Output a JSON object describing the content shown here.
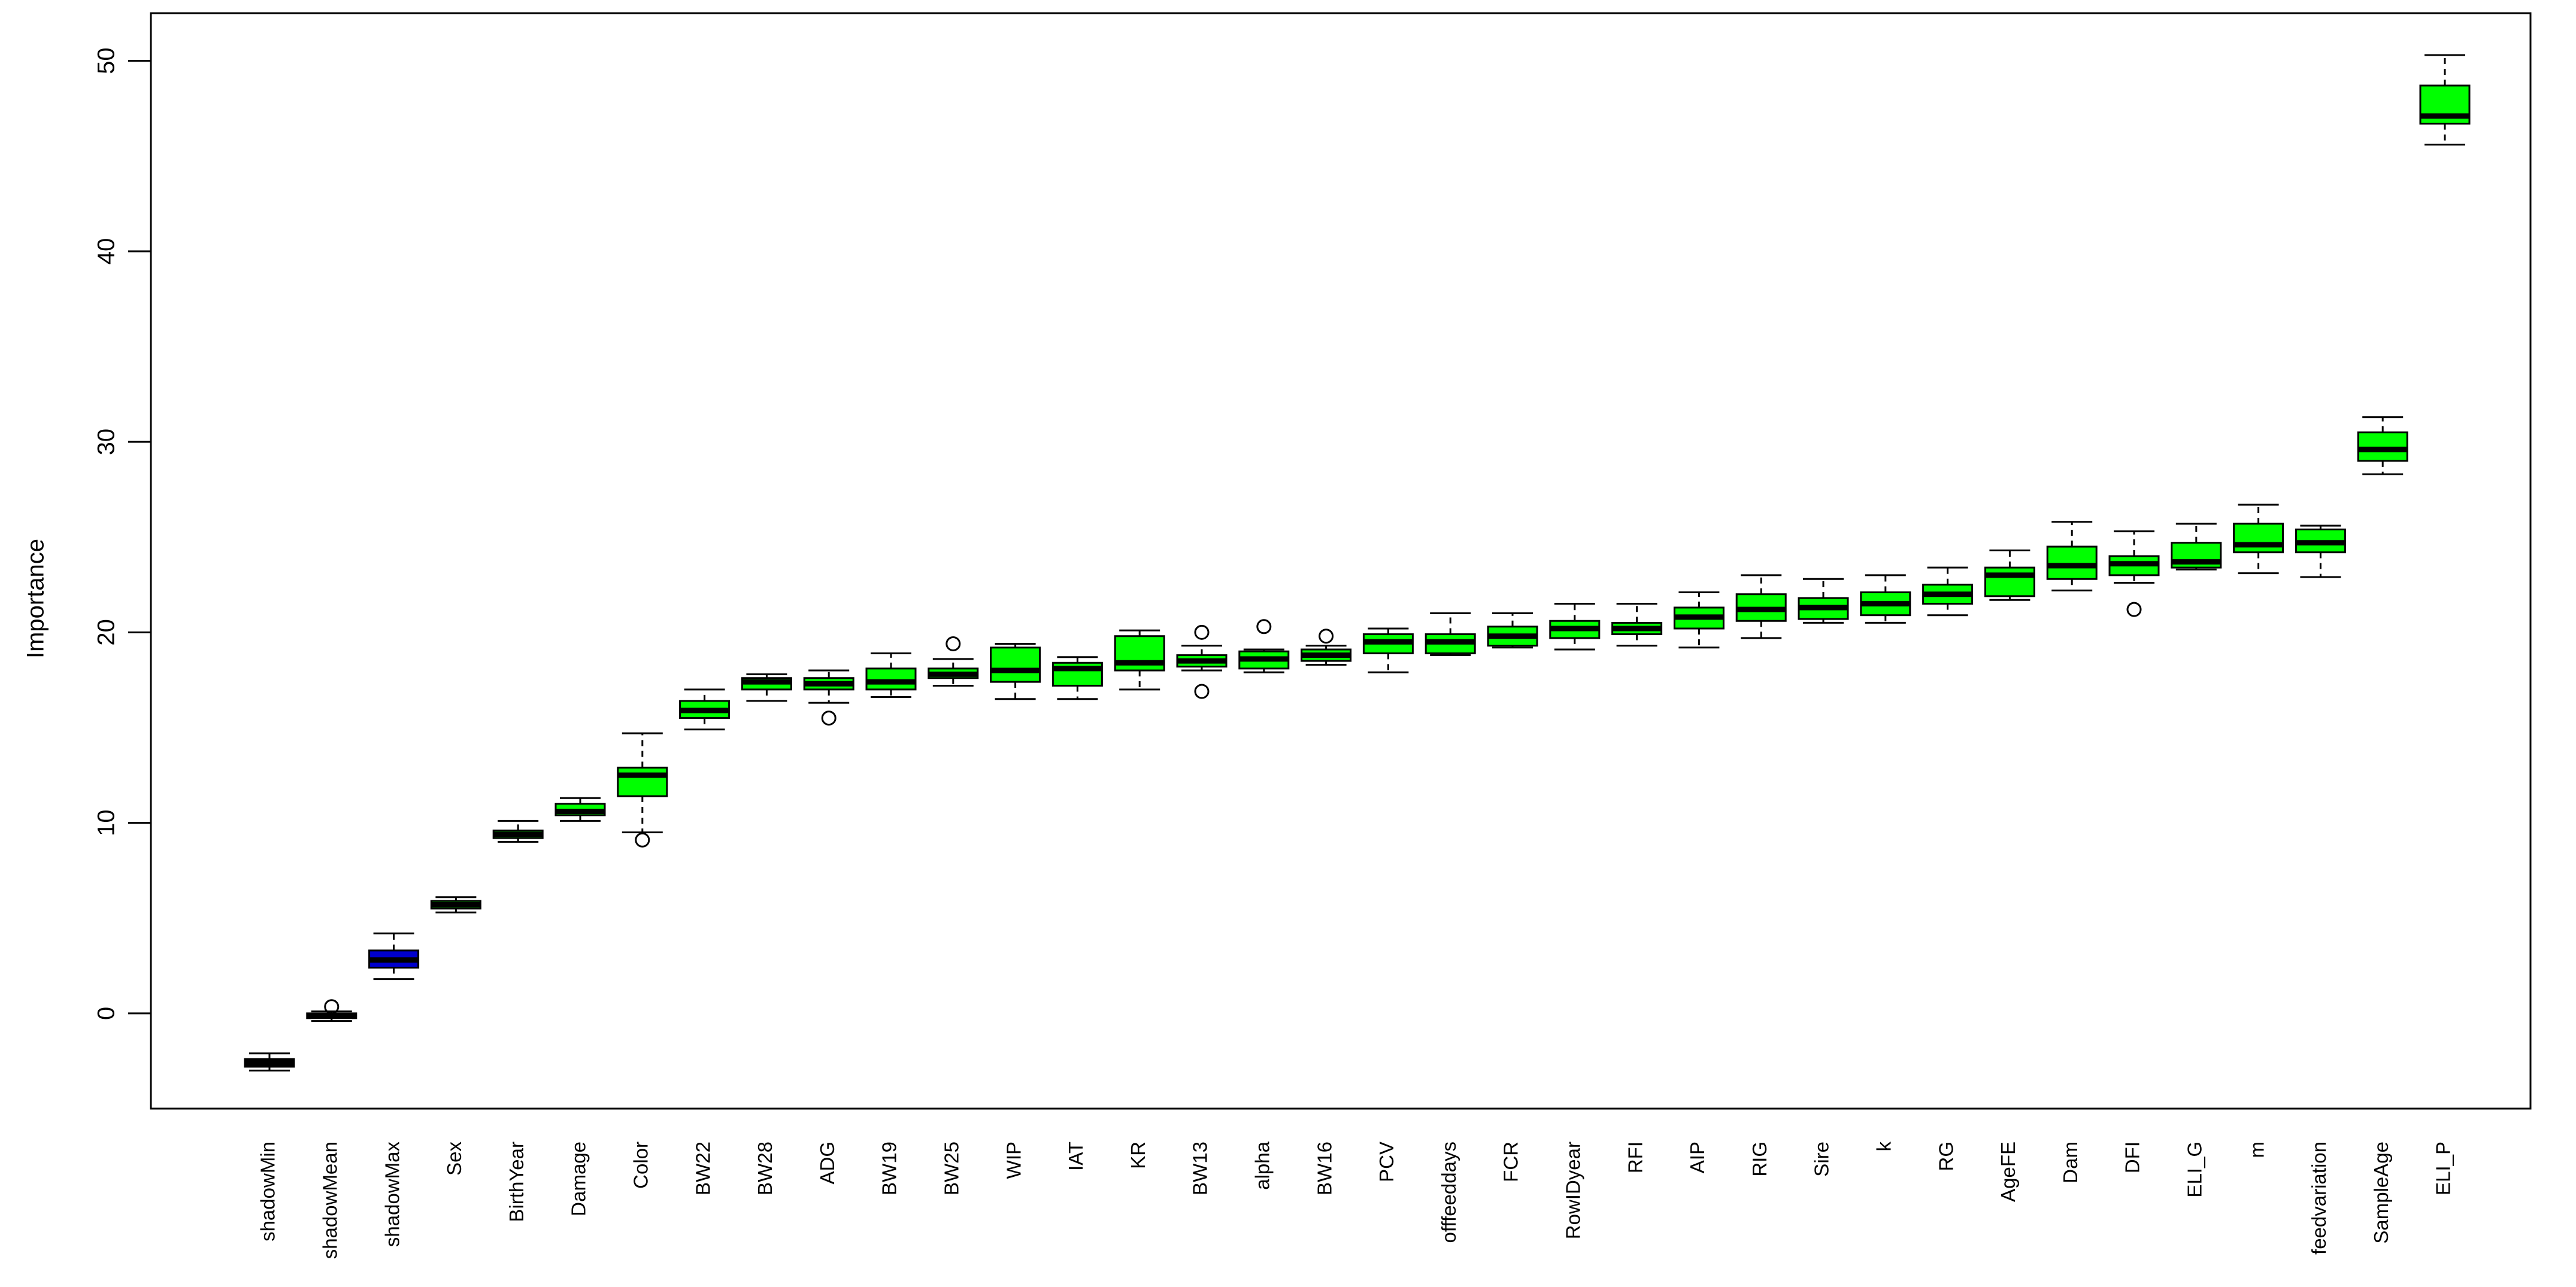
{
  "chart_data": {
    "type": "box",
    "ylabel": "Importance",
    "categories": [
      "shadowMin",
      "shadowMean",
      "shadowMax",
      "Sex",
      "BirthYear",
      "Damage",
      "Color",
      "BW22",
      "BW28",
      "ADG",
      "BW19",
      "BW25",
      "WIP",
      "IAT",
      "KR",
      "BW13",
      "alpha",
      "BW16",
      "PCV",
      "offfeeddays",
      "FCR",
      "RowIDyear",
      "RFI",
      "AIP",
      "RIG",
      "Sire",
      "k",
      "RG",
      "AgeFE",
      "Dam",
      "DFI",
      "ELI_G",
      "m",
      "feedvariation",
      "SampleAge",
      "ELI_P"
    ],
    "min": [
      -3.0,
      -0.4,
      1.8,
      5.3,
      9.0,
      10.1,
      9.5,
      14.9,
      16.4,
      16.3,
      16.6,
      17.2,
      16.5,
      16.5,
      17.0,
      18.0,
      17.9,
      18.3,
      17.9,
      18.8,
      19.2,
      19.1,
      19.3,
      19.2,
      19.7,
      20.5,
      20.5,
      20.9,
      21.7,
      22.2,
      22.6,
      23.3,
      23.1,
      22.9,
      28.3,
      45.6
    ],
    "q1": [
      -2.8,
      -0.25,
      2.4,
      5.5,
      9.2,
      10.4,
      11.4,
      15.5,
      17.0,
      17.0,
      17.0,
      17.6,
      17.4,
      17.2,
      18.0,
      18.2,
      18.1,
      18.5,
      18.9,
      18.9,
      19.3,
      19.7,
      19.9,
      20.2,
      20.6,
      20.7,
      20.9,
      21.5,
      21.9,
      22.8,
      23.0,
      23.4,
      24.2,
      24.2,
      29.0,
      46.7
    ],
    "median": [
      -2.6,
      -0.1,
      2.8,
      5.7,
      9.4,
      10.6,
      12.5,
      15.9,
      17.4,
      17.3,
      17.4,
      17.8,
      18.0,
      18.1,
      18.4,
      18.5,
      18.6,
      18.8,
      19.5,
      19.5,
      19.8,
      20.2,
      20.2,
      20.8,
      21.2,
      21.3,
      21.5,
      22.0,
      23.0,
      23.5,
      23.6,
      23.7,
      24.6,
      24.7,
      29.6,
      47.1
    ],
    "q3": [
      -2.4,
      0.0,
      3.3,
      5.9,
      9.6,
      11.0,
      12.9,
      16.4,
      17.6,
      17.6,
      18.1,
      18.1,
      19.2,
      18.4,
      19.8,
      18.8,
      19.0,
      19.1,
      19.9,
      19.9,
      20.3,
      20.6,
      20.5,
      21.3,
      22.0,
      21.8,
      22.1,
      22.5,
      23.4,
      24.5,
      24.0,
      24.7,
      25.7,
      25.4,
      30.5,
      48.7
    ],
    "max": [
      -2.1,
      0.1,
      4.2,
      6.1,
      10.1,
      11.3,
      14.7,
      17.0,
      17.8,
      18.0,
      18.9,
      18.6,
      19.4,
      18.7,
      20.1,
      19.3,
      19.1,
      19.3,
      20.2,
      21.0,
      21.0,
      21.5,
      21.5,
      22.1,
      23.0,
      22.8,
      23.0,
      23.4,
      24.3,
      25.8,
      25.3,
      25.7,
      26.7,
      25.6,
      31.3,
      50.3
    ],
    "outliers": [
      [],
      [
        0.35
      ],
      [],
      [],
      [],
      [],
      [
        9.1
      ],
      [],
      [],
      [
        15.5
      ],
      [],
      [
        19.4
      ],
      [],
      [],
      [],
      [
        16.9,
        20.0
      ],
      [
        20.3
      ],
      [
        19.8
      ],
      [],
      [],
      [],
      [],
      [],
      [],
      [],
      [],
      [],
      [],
      [],
      [],
      [
        21.2
      ],
      [],
      [],
      [],
      [],
      []
    ],
    "colors": [
      "#000000",
      "#000000",
      "#0000cd",
      "#00ff00",
      "#00ff00",
      "#00ff00",
      "#00ff00",
      "#00ff00",
      "#00ff00",
      "#00ff00",
      "#00ff00",
      "#00ff00",
      "#00ff00",
      "#00ff00",
      "#00ff00",
      "#00ff00",
      "#00ff00",
      "#00ff00",
      "#00ff00",
      "#00ff00",
      "#00ff00",
      "#00ff00",
      "#00ff00",
      "#00ff00",
      "#00ff00",
      "#00ff00",
      "#00ff00",
      "#00ff00",
      "#00ff00",
      "#00ff00",
      "#00ff00",
      "#00ff00",
      "#00ff00",
      "#00ff00",
      "#00ff00",
      "#00ff00"
    ],
    "ylim": [
      -5.0,
      52.5
    ],
    "yticks": [
      0,
      10,
      20,
      30,
      40,
      50
    ]
  }
}
